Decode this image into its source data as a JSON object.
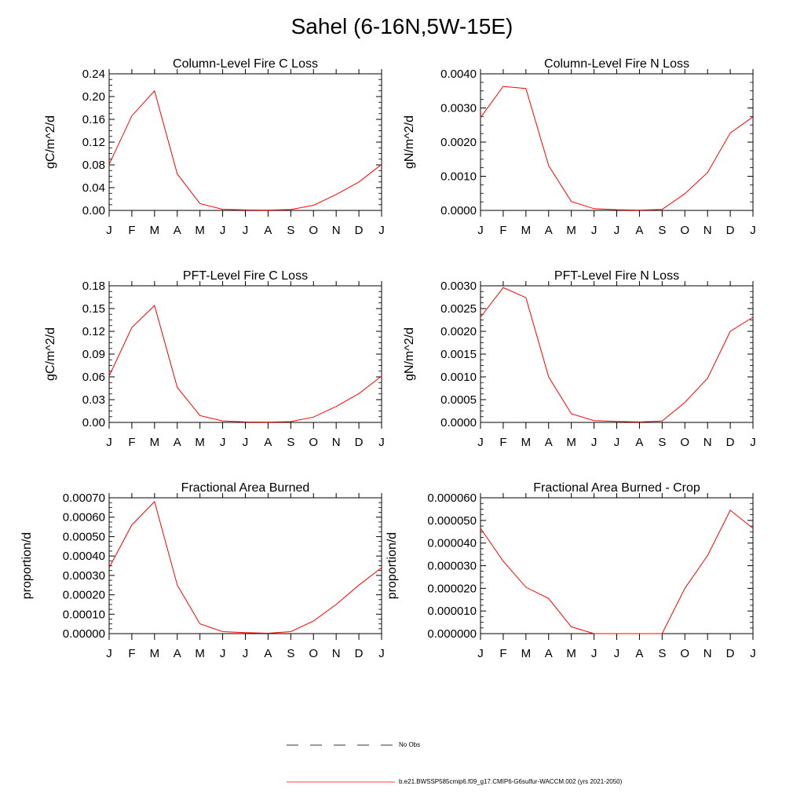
{
  "figure": {
    "title": "Sahel (6-16N,5W-15E)"
  },
  "legend": {
    "obs_label": "No Obs",
    "model_label": "b.e21.BWSSP585cmip6.f09_g17.CMIP6-G6sulfur-WACCM.002 (yrs 2021-2050)",
    "obs_color": "#000000",
    "model_color": "#ff0000"
  },
  "chart_data": [
    {
      "type": "line",
      "title": "Column-Level Fire C Loss",
      "ylabel": "gC/m^2/d",
      "x": [
        "J",
        "F",
        "M",
        "A",
        "M",
        "J",
        "J",
        "A",
        "S",
        "O",
        "N",
        "D",
        "J"
      ],
      "ylim": [
        0,
        0.24
      ],
      "yticks": [
        "0.00",
        "0.04",
        "0.08",
        "0.12",
        "0.16",
        "0.20",
        "0.24"
      ],
      "series": [
        {
          "values": [
            0.081,
            0.166,
            0.21,
            0.064,
            0.012,
            0.002,
            0.0008,
            0.0005,
            0.0015,
            0.009,
            0.028,
            0.05,
            0.081
          ],
          "color": "#ff0000"
        }
      ]
    },
    {
      "type": "line",
      "title": "Column-Level Fire N Loss",
      "ylabel": "gN/m^2/d",
      "x": [
        "J",
        "F",
        "M",
        "A",
        "M",
        "J",
        "J",
        "A",
        "S",
        "O",
        "N",
        "D",
        "J"
      ],
      "ylim": [
        0,
        0.004
      ],
      "yticks": [
        "0.0000",
        "0.0010",
        "0.0020",
        "0.0030",
        "0.0040"
      ],
      "series": [
        {
          "values": [
            0.00272,
            0.00363,
            0.00357,
            0.00131,
            0.00026,
            5e-05,
            2e-05,
            1e-05,
            3e-05,
            0.00049,
            0.00111,
            0.00227,
            0.00274
          ],
          "color": "#ff0000"
        }
      ]
    },
    {
      "type": "line",
      "title": "PFT-Level Fire C Loss",
      "ylabel": "gC/m^2/d",
      "x": [
        "J",
        "F",
        "M",
        "A",
        "M",
        "J",
        "J",
        "A",
        "S",
        "O",
        "N",
        "D",
        "J"
      ],
      "ylim": [
        0,
        0.18
      ],
      "yticks": [
        "0.00",
        "0.03",
        "0.06",
        "0.09",
        "0.12",
        "0.15",
        "0.18"
      ],
      "series": [
        {
          "values": [
            0.061,
            0.125,
            0.154,
            0.046,
            0.009,
            0.002,
            0.0006,
            0.0004,
            0.001,
            0.007,
            0.021,
            0.038,
            0.061
          ],
          "color": "#ff0000"
        }
      ]
    },
    {
      "type": "line",
      "title": "PFT-Level Fire N Loss",
      "ylabel": "gN/m^2/d",
      "x": [
        "J",
        "F",
        "M",
        "A",
        "M",
        "J",
        "J",
        "A",
        "S",
        "O",
        "N",
        "D",
        "J"
      ],
      "ylim": [
        0,
        0.003
      ],
      "yticks": [
        "0.0000",
        "0.0005",
        "0.0010",
        "0.0015",
        "0.0020",
        "0.0025",
        "0.0030"
      ],
      "series": [
        {
          "values": [
            0.00231,
            0.00296,
            0.00274,
            0.001,
            0.00019,
            4e-05,
            2e-05,
            1e-05,
            3e-05,
            0.00044,
            0.00097,
            0.002,
            0.00231
          ],
          "color": "#ff0000"
        }
      ]
    },
    {
      "type": "line",
      "title": "Fractional Area Burned",
      "ylabel": "proportion/d",
      "x": [
        "J",
        "F",
        "M",
        "A",
        "M",
        "J",
        "J",
        "A",
        "S",
        "O",
        "N",
        "D",
        "J"
      ],
      "ylim": [
        0,
        0.0007
      ],
      "yticks": [
        "0.00000",
        "0.00010",
        "0.00020",
        "0.00030",
        "0.00040",
        "0.00050",
        "0.00060",
        "0.00070"
      ],
      "series": [
        {
          "values": [
            0.00034,
            0.00056,
            0.00068,
            0.00025,
            5e-05,
            1e-05,
            5e-06,
            2e-06,
            1e-05,
            6.5e-05,
            0.00015,
            0.00025,
            0.00034
          ],
          "color": "#ff0000"
        }
      ]
    },
    {
      "type": "line",
      "title": "Fractional Area Burned - Crop",
      "ylabel": "proportion/d",
      "x": [
        "J",
        "F",
        "M",
        "A",
        "M",
        "J",
        "J",
        "A",
        "S",
        "O",
        "N",
        "D",
        "J"
      ],
      "ylim": [
        0,
        6e-05
      ],
      "yticks": [
        "0.000000",
        "0.000010",
        "0.000020",
        "0.000030",
        "0.000040",
        "0.000050",
        "0.000060"
      ],
      "series": [
        {
          "values": [
            4.65e-05,
            3.2e-05,
            2.05e-05,
            1.55e-05,
            3e-06,
            0.0,
            0.0,
            0.0,
            0.0,
            2e-05,
            3.45e-05,
            5.45e-05,
            4.65e-05
          ],
          "color": "#ff0000"
        }
      ]
    }
  ]
}
